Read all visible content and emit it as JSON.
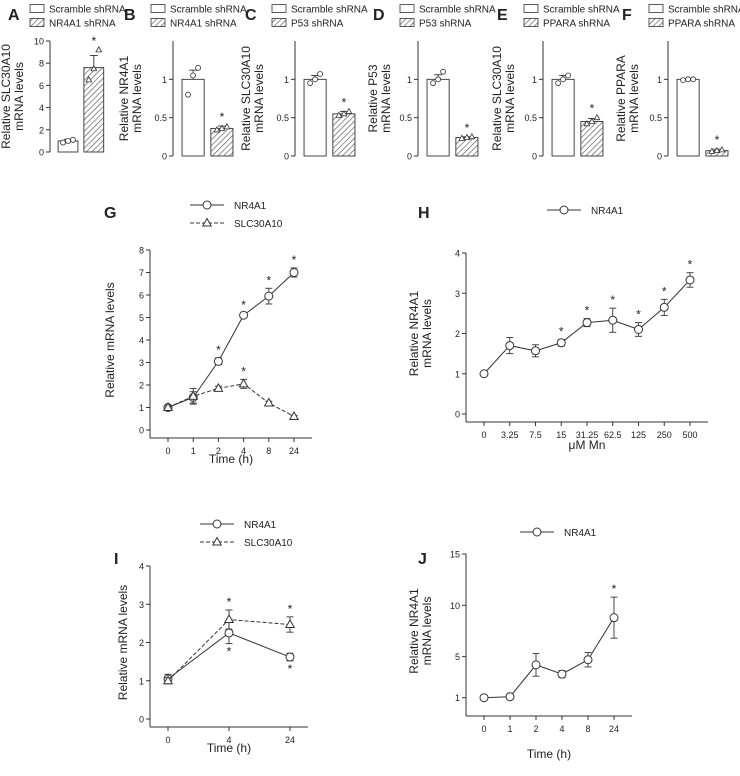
{
  "panels": [
    {
      "letter": "A",
      "type": "bar",
      "ylabel": [
        "Relative SLC30A10",
        "mRNA levels"
      ],
      "ylim": [
        0,
        10
      ],
      "yticks": [
        0,
        2,
        4,
        6,
        8,
        10
      ],
      "legend": [
        "Scramble shRNA",
        "NR4A1 shRNA"
      ],
      "values": [
        1.0,
        7.6
      ],
      "errors": [
        0.15,
        1.1
      ],
      "points": [
        [
          0.85,
          1.0,
          1.1
        ],
        [
          6.5,
          7.5,
          9.2
        ]
      ],
      "star": [
        false,
        true
      ]
    },
    {
      "letter": "B",
      "type": "bar",
      "ylabel": [
        "Relative NR4A1",
        "mRNA levels"
      ],
      "ylim": [
        0,
        1.5
      ],
      "yticks": [
        0,
        0.5,
        1
      ],
      "legend": [
        "Scramble shRNA",
        "NR4A1 shRNA"
      ],
      "values": [
        1.0,
        0.36
      ],
      "errors": [
        0.12,
        0.03
      ],
      "points": [
        [
          0.8,
          1.05,
          1.15
        ],
        [
          0.34,
          0.36,
          0.38
        ]
      ],
      "star": [
        false,
        true
      ]
    },
    {
      "letter": "C",
      "type": "bar",
      "ylabel": [
        "Relative SLC30A10",
        "mRNA levels"
      ],
      "ylim": [
        0,
        1.5
      ],
      "yticks": [
        0,
        0.5,
        1
      ],
      "legend": [
        "Scramble shRNA",
        "P53 shRNA"
      ],
      "values": [
        1.0,
        0.55
      ],
      "errors": [
        0.05,
        0.03
      ],
      "points": [
        [
          0.95,
          1.0,
          1.07
        ],
        [
          0.53,
          0.55,
          0.58
        ]
      ],
      "star": [
        false,
        true
      ]
    },
    {
      "letter": "D",
      "type": "bar",
      "ylabel": [
        "Relative P53",
        "mRNA levels"
      ],
      "ylim": [
        0,
        1.5
      ],
      "yticks": [
        0,
        0.5,
        1
      ],
      "legend": [
        "Scramble shRNA",
        "P53 shRNA"
      ],
      "values": [
        1.0,
        0.24
      ],
      "errors": [
        0.06,
        0.01
      ],
      "points": [
        [
          0.95,
          1.0,
          1.1
        ],
        [
          0.23,
          0.24,
          0.25
        ]
      ],
      "star": [
        false,
        true
      ]
    },
    {
      "letter": "E",
      "type": "bar",
      "ylabel": [
        "Relative SLC30A10",
        "mRNA levels"
      ],
      "ylim": [
        0,
        1.5
      ],
      "yticks": [
        0,
        0.5,
        1
      ],
      "legend": [
        "Scramble shRNA",
        "PPARA shRNA"
      ],
      "values": [
        1.0,
        0.45
      ],
      "errors": [
        0.05,
        0.04
      ],
      "points": [
        [
          0.95,
          1.0,
          1.05
        ],
        [
          0.42,
          0.45,
          0.5
        ]
      ],
      "star": [
        false,
        true
      ]
    },
    {
      "letter": "F",
      "type": "bar",
      "ylabel": [
        "Relative PPARA",
        "mRNA levels"
      ],
      "ylim": [
        0,
        1.5
      ],
      "yticks": [
        0,
        0.5,
        1
      ],
      "legend": [
        "Scramble shRNA",
        "PPARA shRNA"
      ],
      "values": [
        1.0,
        0.07
      ],
      "errors": [
        0.01,
        0.02
      ],
      "points": [
        [
          0.99,
          1.0,
          1.0
        ],
        [
          0.06,
          0.07,
          0.08
        ]
      ],
      "star": [
        false,
        true
      ]
    },
    {
      "letter": "G",
      "type": "line",
      "ylabel": [
        "Relative mRNA levels"
      ],
      "xlabel": "Time (h)",
      "categories": [
        "0",
        "1",
        "2",
        "4",
        "8",
        "24"
      ],
      "ylim": [
        0,
        8
      ],
      "yticks": [
        0,
        1,
        2,
        3,
        4,
        5,
        6,
        7,
        8
      ],
      "series": [
        {
          "name": "NR4A1",
          "marker": "circle",
          "dashed": false,
          "values": [
            1.0,
            1.45,
            3.05,
            5.1,
            5.95,
            7.0
          ],
          "errors": [
            0.1,
            0.25,
            0.15,
            0.1,
            0.35,
            0.2
          ],
          "star": [
            false,
            false,
            true,
            true,
            true,
            true
          ]
        },
        {
          "name": "SLC30A10",
          "marker": "triangle",
          "dashed": true,
          "values": [
            1.0,
            1.5,
            1.85,
            2.05,
            1.2,
            0.6
          ],
          "errors": [
            0.1,
            0.35,
            0.1,
            0.2,
            0.08,
            0.05
          ],
          "star": [
            false,
            false,
            false,
            true,
            false,
            false
          ]
        }
      ]
    },
    {
      "letter": "H",
      "type": "line",
      "ylabel": [
        "Relative NR4A1",
        "mRNA levels"
      ],
      "xlabel": "μM Mn",
      "categories": [
        "0",
        "3.25",
        "7.5",
        "15",
        "31.25",
        "62.5",
        "125",
        "250",
        "500"
      ],
      "ylim": [
        0,
        4
      ],
      "yticks": [
        0,
        1,
        2,
        3,
        4
      ],
      "series": [
        {
          "name": "NR4A1",
          "marker": "circle",
          "dashed": false,
          "values": [
            1.0,
            1.7,
            1.57,
            1.77,
            2.27,
            2.33,
            2.1,
            2.65,
            3.33
          ],
          "errors": [
            0.0,
            0.2,
            0.15,
            0.08,
            0.1,
            0.3,
            0.17,
            0.2,
            0.18
          ],
          "star": [
            false,
            false,
            false,
            true,
            true,
            true,
            true,
            true,
            true
          ]
        }
      ]
    },
    {
      "letter": "I",
      "type": "line",
      "ylabel": [
        "Relative mRNA levels"
      ],
      "xlabel": "Time (h)",
      "categories": [
        "0",
        "4",
        "24"
      ],
      "ylim": [
        0,
        4
      ],
      "yticks": [
        0,
        1,
        2,
        3,
        4
      ],
      "series": [
        {
          "name": "NR4A1",
          "marker": "circle",
          "dashed": false,
          "values": [
            1.05,
            2.25,
            1.62
          ],
          "errors": [
            0.12,
            0.28,
            0.1
          ],
          "star": [
            false,
            true,
            true
          ],
          "star_below": true
        },
        {
          "name": "SLC30A10",
          "marker": "triangle",
          "dashed": true,
          "values": [
            1.0,
            2.6,
            2.47
          ],
          "errors": [
            0.08,
            0.25,
            0.2
          ],
          "star": [
            false,
            true,
            true
          ]
        }
      ]
    },
    {
      "letter": "J",
      "type": "line",
      "ylabel": [
        "Relative NR4A1",
        "mRNA levels"
      ],
      "xlabel": "Time (h)",
      "categories": [
        "0",
        "1",
        "2",
        "4",
        "8",
        "24"
      ],
      "ylim": [
        0,
        15
      ],
      "yticks": [
        1,
        5,
        10,
        15
      ],
      "series": [
        {
          "name": "NR4A1",
          "marker": "circle",
          "dashed": false,
          "values": [
            1.0,
            1.1,
            4.2,
            3.3,
            4.7,
            8.8
          ],
          "errors": [
            0.05,
            0.1,
            1.1,
            0.35,
            0.7,
            2.0
          ],
          "star": [
            false,
            false,
            false,
            false,
            false,
            true
          ]
        }
      ]
    }
  ],
  "chart_data": [
    {
      "type": "bar",
      "title": "A",
      "categories": [
        "Scramble shRNA",
        "NR4A1 shRNA"
      ],
      "values": [
        1.0,
        7.6
      ],
      "ylabel": "Relative SLC30A10 mRNA levels",
      "xlabel": "",
      "ylim": [
        0,
        10
      ]
    },
    {
      "type": "bar",
      "title": "B",
      "categories": [
        "Scramble shRNA",
        "NR4A1 shRNA"
      ],
      "values": [
        1.0,
        0.36
      ],
      "ylabel": "Relative NR4A1 mRNA levels",
      "xlabel": "",
      "ylim": [
        0,
        1.5
      ]
    },
    {
      "type": "bar",
      "title": "C",
      "categories": [
        "Scramble shRNA",
        "P53 shRNA"
      ],
      "values": [
        1.0,
        0.55
      ],
      "ylabel": "Relative SLC30A10 mRNA levels",
      "xlabel": "",
      "ylim": [
        0,
        1.5
      ]
    },
    {
      "type": "bar",
      "title": "D",
      "categories": [
        "Scramble shRNA",
        "P53 shRNA"
      ],
      "values": [
        1.0,
        0.24
      ],
      "ylabel": "Relative P53 mRNA levels",
      "xlabel": "",
      "ylim": [
        0,
        1.5
      ]
    },
    {
      "type": "bar",
      "title": "E",
      "categories": [
        "Scramble shRNA",
        "PPARA shRNA"
      ],
      "values": [
        1.0,
        0.45
      ],
      "ylabel": "Relative SLC30A10 mRNA levels",
      "xlabel": "",
      "ylim": [
        0,
        1.5
      ]
    },
    {
      "type": "bar",
      "title": "F",
      "categories": [
        "Scramble shRNA",
        "PPARA shRNA"
      ],
      "values": [
        1.0,
        0.07
      ],
      "ylabel": "Relative PPARA mRNA levels",
      "xlabel": "",
      "ylim": [
        0,
        1.5
      ]
    },
    {
      "type": "line",
      "title": "G",
      "categories": [
        "0",
        "1",
        "2",
        "4",
        "8",
        "24"
      ],
      "xlabel": "Time (h)",
      "ylabel": "Relative mRNA levels",
      "ylim": [
        0,
        8
      ],
      "series": [
        {
          "name": "NR4A1",
          "values": [
            1.0,
            1.45,
            3.05,
            5.1,
            5.95,
            7.0
          ]
        },
        {
          "name": "SLC30A10",
          "values": [
            1.0,
            1.5,
            1.85,
            2.05,
            1.2,
            0.6
          ]
        }
      ]
    },
    {
      "type": "line",
      "title": "H",
      "categories": [
        "0",
        "3.25",
        "7.5",
        "15",
        "31.25",
        "62.5",
        "125",
        "250",
        "500"
      ],
      "xlabel": "μM Mn",
      "ylabel": "Relative NR4A1 mRNA levels",
      "ylim": [
        0,
        4
      ],
      "series": [
        {
          "name": "NR4A1",
          "values": [
            1.0,
            1.7,
            1.57,
            1.77,
            2.27,
            2.33,
            2.1,
            2.65,
            3.33
          ]
        }
      ]
    },
    {
      "type": "line",
      "title": "I",
      "categories": [
        "0",
        "4",
        "24"
      ],
      "xlabel": "Time (h)",
      "ylabel": "Relative mRNA levels",
      "ylim": [
        0,
        4
      ],
      "series": [
        {
          "name": "NR4A1",
          "values": [
            1.05,
            2.25,
            1.62
          ]
        },
        {
          "name": "SLC30A10",
          "values": [
            1.0,
            2.6,
            2.47
          ]
        }
      ]
    },
    {
      "type": "line",
      "title": "J",
      "categories": [
        "0",
        "1",
        "2",
        "4",
        "8",
        "24"
      ],
      "xlabel": "Time (h)",
      "ylabel": "Relative NR4A1 mRNA levels",
      "ylim": [
        0,
        15
      ],
      "series": [
        {
          "name": "NR4A1",
          "values": [
            1.0,
            1.1,
            4.2,
            3.3,
            4.7,
            8.8
          ]
        }
      ]
    }
  ],
  "significance_symbol": "*"
}
